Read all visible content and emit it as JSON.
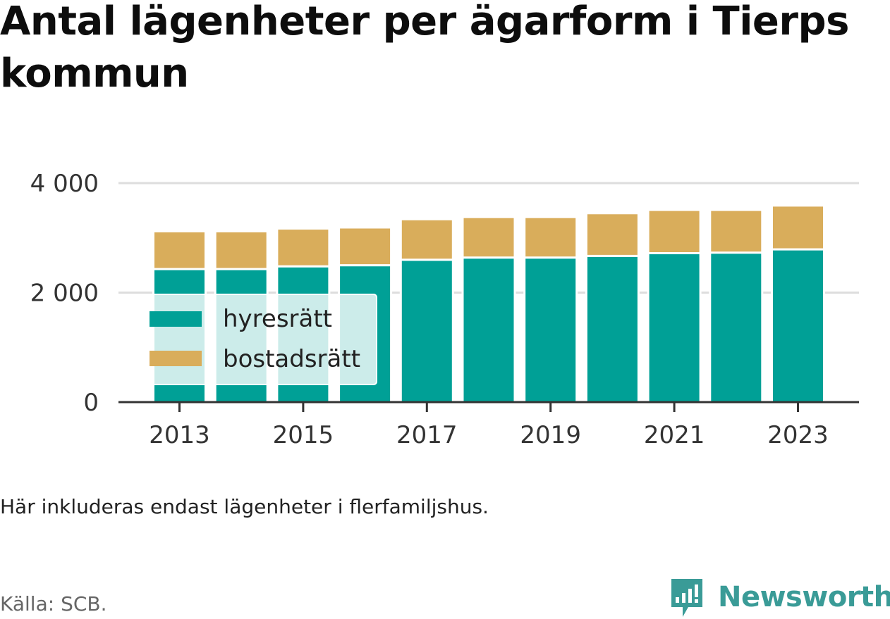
{
  "title": "Antal lägenheter per ägarform i Tierps kommun",
  "note": "Här inkluderas endast lägenheter i flerfamiljshus.",
  "source": "Källa: SCB.",
  "brand": "Newsworthy",
  "colors": {
    "hyresratt": "#00a096",
    "bostadsratt": "#d9ad5b",
    "grid": "#dddddd",
    "axis": "#333333",
    "brand": "#3a9b97"
  },
  "chart_data": {
    "type": "bar",
    "stacked": true,
    "categories": [
      "2013",
      "2014",
      "2015",
      "2016",
      "2017",
      "2018",
      "2019",
      "2020",
      "2021",
      "2022",
      "2023"
    ],
    "x_tick_labels": [
      "2013",
      "2015",
      "2017",
      "2019",
      "2021",
      "2023"
    ],
    "series": [
      {
        "name": "hyresrätt",
        "values": [
          2430,
          2430,
          2480,
          2500,
          2600,
          2640,
          2640,
          2670,
          2720,
          2730,
          2790
        ]
      },
      {
        "name": "bostadsrätt",
        "values": [
          690,
          690,
          690,
          690,
          740,
          740,
          740,
          780,
          790,
          780,
          800
        ]
      }
    ],
    "ylim": [
      0,
      4000
    ],
    "y_ticks": [
      0,
      2000,
      4000
    ],
    "y_tick_labels": [
      "0",
      "2 000",
      "4 000"
    ],
    "grid": true,
    "legend_position": "bottom-left"
  }
}
